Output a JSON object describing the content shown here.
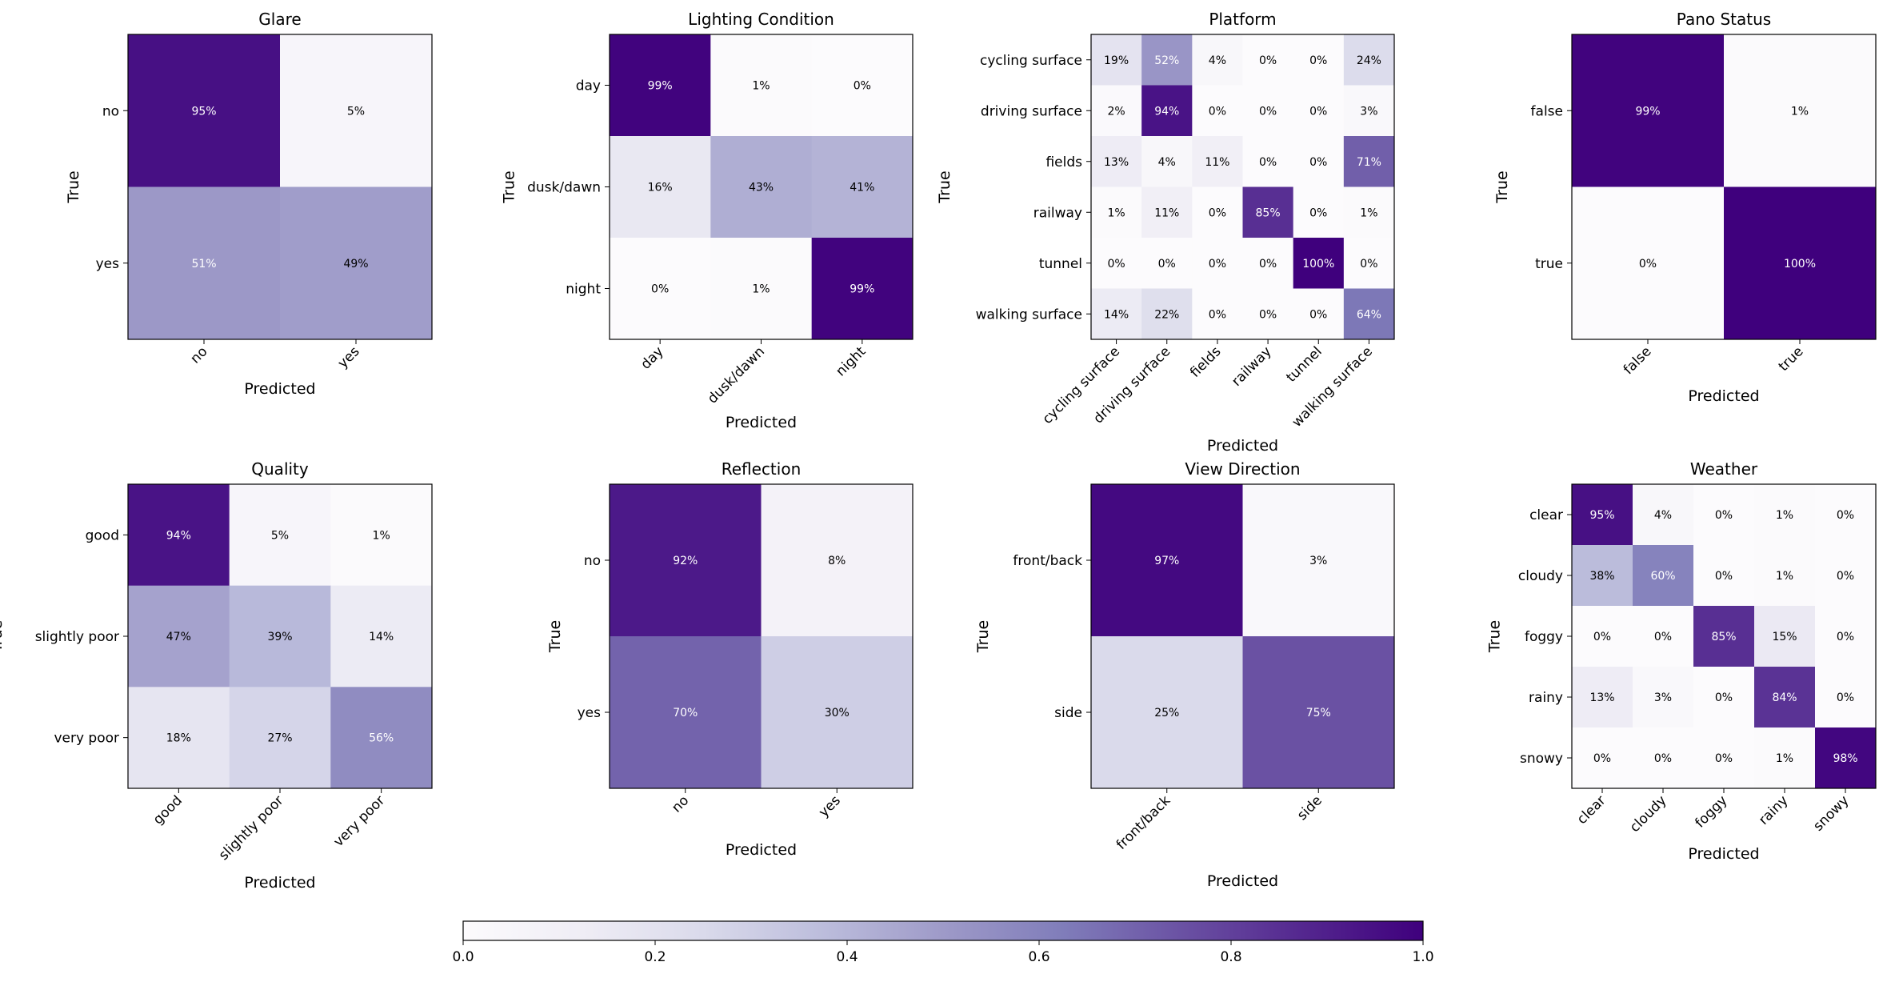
{
  "figure": {
    "colormap": [
      "#fcfbfd",
      "#efedf5",
      "#dadaeb",
      "#bcbddc",
      "#9e9ac8",
      "#807dba",
      "#6a51a3",
      "#54278f",
      "#3f007d"
    ],
    "colorbar": {
      "min": 0.0,
      "max": 1.0,
      "ticks": [
        "0.0",
        "0.2",
        "0.4",
        "0.6",
        "0.8",
        "1.0"
      ]
    }
  },
  "chart_data": [
    {
      "type": "heatmap",
      "title": "Glare",
      "xlabel": "Predicted",
      "ylabel": "True",
      "labels": [
        "no",
        "yes"
      ],
      "values": [
        [
          0.95,
          0.05
        ],
        [
          0.51,
          0.49
        ]
      ],
      "cells": [
        [
          "95%",
          "5%"
        ],
        [
          "51%",
          "49%"
        ]
      ]
    },
    {
      "type": "heatmap",
      "title": "Lighting Condition",
      "xlabel": "Predicted",
      "ylabel": "True",
      "labels": [
        "day",
        "dusk/dawn",
        "night"
      ],
      "values": [
        [
          0.99,
          0.01,
          0.0
        ],
        [
          0.16,
          0.43,
          0.41
        ],
        [
          0.0,
          0.01,
          0.99
        ]
      ],
      "cells": [
        [
          "99%",
          "1%",
          "0%"
        ],
        [
          "16%",
          "43%",
          "41%"
        ],
        [
          "0%",
          "1%",
          "99%"
        ]
      ]
    },
    {
      "type": "heatmap",
      "title": "Platform",
      "xlabel": "Predicted",
      "ylabel": "True",
      "labels": [
        "cycling surface",
        "driving surface",
        "fields",
        "railway",
        "tunnel",
        "walking surface"
      ],
      "values": [
        [
          0.19,
          0.52,
          0.04,
          0.0,
          0.0,
          0.24
        ],
        [
          0.02,
          0.94,
          0.0,
          0.0,
          0.0,
          0.03
        ],
        [
          0.13,
          0.04,
          0.11,
          0.0,
          0.0,
          0.71
        ],
        [
          0.01,
          0.11,
          0.0,
          0.85,
          0.0,
          0.01
        ],
        [
          0.0,
          0.0,
          0.0,
          0.0,
          1.0,
          0.0
        ],
        [
          0.14,
          0.22,
          0.0,
          0.0,
          0.0,
          0.64
        ]
      ],
      "cells": [
        [
          "19%",
          "52%",
          "4%",
          "0%",
          "0%",
          "24%"
        ],
        [
          "2%",
          "94%",
          "0%",
          "0%",
          "0%",
          "3%"
        ],
        [
          "13%",
          "4%",
          "11%",
          "0%",
          "0%",
          "71%"
        ],
        [
          "1%",
          "11%",
          "0%",
          "85%",
          "0%",
          "1%"
        ],
        [
          "0%",
          "0%",
          "0%",
          "0%",
          "100%",
          "0%"
        ],
        [
          "14%",
          "22%",
          "0%",
          "0%",
          "0%",
          "64%"
        ]
      ]
    },
    {
      "type": "heatmap",
      "title": "Pano Status",
      "xlabel": "Predicted",
      "ylabel": "True",
      "labels": [
        "false",
        "true"
      ],
      "values": [
        [
          0.99,
          0.01
        ],
        [
          0.0,
          1.0
        ]
      ],
      "cells": [
        [
          "99%",
          "1%"
        ],
        [
          "0%",
          "100%"
        ]
      ]
    },
    {
      "type": "heatmap",
      "title": "Quality",
      "xlabel": "Predicted",
      "ylabel": "True",
      "labels": [
        "good",
        "slightly poor",
        "very poor"
      ],
      "values": [
        [
          0.94,
          0.05,
          0.01
        ],
        [
          0.47,
          0.39,
          0.14
        ],
        [
          0.18,
          0.27,
          0.56
        ]
      ],
      "cells": [
        [
          "94%",
          "5%",
          "1%"
        ],
        [
          "47%",
          "39%",
          "14%"
        ],
        [
          "18%",
          "27%",
          "56%"
        ]
      ]
    },
    {
      "type": "heatmap",
      "title": "Reflection",
      "xlabel": "Predicted",
      "ylabel": "True",
      "labels": [
        "no",
        "yes"
      ],
      "values": [
        [
          0.92,
          0.08
        ],
        [
          0.7,
          0.3
        ]
      ],
      "cells": [
        [
          "92%",
          "8%"
        ],
        [
          "70%",
          "30%"
        ]
      ]
    },
    {
      "type": "heatmap",
      "title": "View Direction",
      "xlabel": "Predicted",
      "ylabel": "True",
      "labels": [
        "front/back",
        "side"
      ],
      "values": [
        [
          0.97,
          0.03
        ],
        [
          0.25,
          0.75
        ]
      ],
      "cells": [
        [
          "97%",
          "3%"
        ],
        [
          "25%",
          "75%"
        ]
      ]
    },
    {
      "type": "heatmap",
      "title": "Weather",
      "xlabel": "Predicted",
      "ylabel": "True",
      "labels": [
        "clear",
        "cloudy",
        "foggy",
        "rainy",
        "snowy"
      ],
      "values": [
        [
          0.95,
          0.04,
          0.0,
          0.01,
          0.0
        ],
        [
          0.38,
          0.6,
          0.0,
          0.01,
          0.0
        ],
        [
          0.0,
          0.0,
          0.85,
          0.15,
          0.0
        ],
        [
          0.13,
          0.03,
          0.0,
          0.84,
          0.0
        ],
        [
          0.0,
          0.0,
          0.0,
          0.01,
          0.98
        ]
      ],
      "cells": [
        [
          "95%",
          "4%",
          "0%",
          "1%",
          "0%"
        ],
        [
          "38%",
          "60%",
          "0%",
          "1%",
          "0%"
        ],
        [
          "0%",
          "0%",
          "85%",
          "15%",
          "0%"
        ],
        [
          "13%",
          "3%",
          "0%",
          "84%",
          "0%"
        ],
        [
          "0%",
          "0%",
          "0%",
          "1%",
          "98%"
        ]
      ]
    }
  ]
}
